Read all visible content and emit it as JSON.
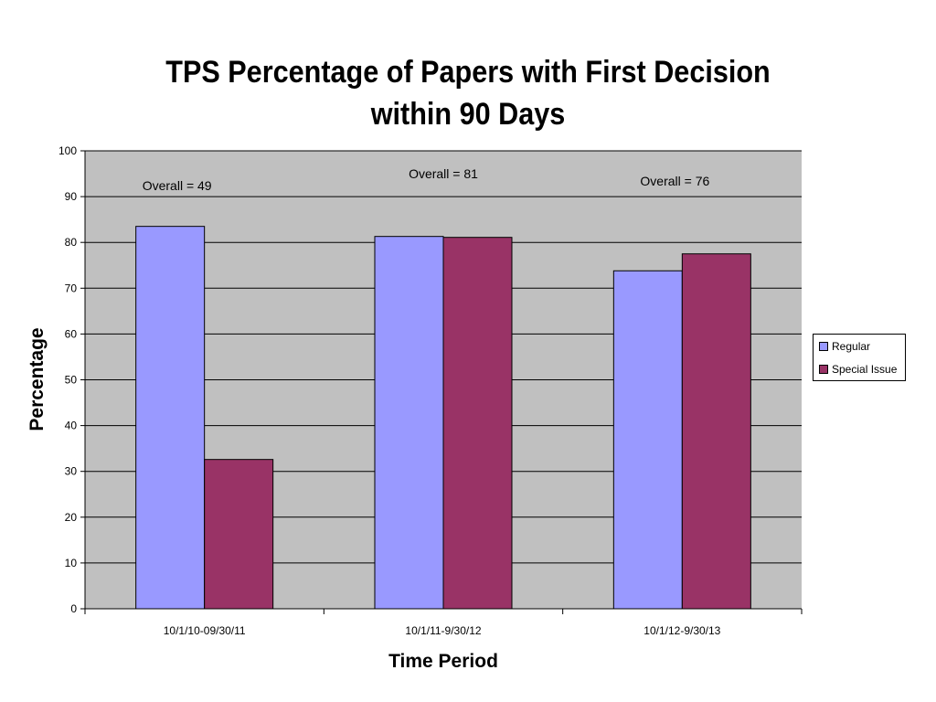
{
  "chart_data": {
    "type": "bar",
    "title_lines": [
      "TPS Percentage of Papers with First Decision",
      "within 90 Days"
    ],
    "xlabel": "Time Period",
    "ylabel": "Percentage",
    "ylim": [
      0,
      100
    ],
    "yticks": [
      0,
      10,
      20,
      30,
      40,
      50,
      60,
      70,
      80,
      90,
      100
    ],
    "grid": true,
    "legend_position": "right",
    "categories": [
      "10/1/10-09/30/11",
      "10/1/11-9/30/12",
      "10/1/12-9/30/13"
    ],
    "series": [
      {
        "name": "Regular",
        "color": "#9999ff",
        "values": [
          83.5,
          81.3,
          73.8
        ]
      },
      {
        "name": "Special Issue",
        "color": "#993366",
        "values": [
          32.6,
          81.1,
          77.5
        ]
      }
    ],
    "annotations": [
      "Overall = 49",
      "Overall = 81",
      "Overall = 76"
    ],
    "plot_background": "#c0c0c0"
  }
}
